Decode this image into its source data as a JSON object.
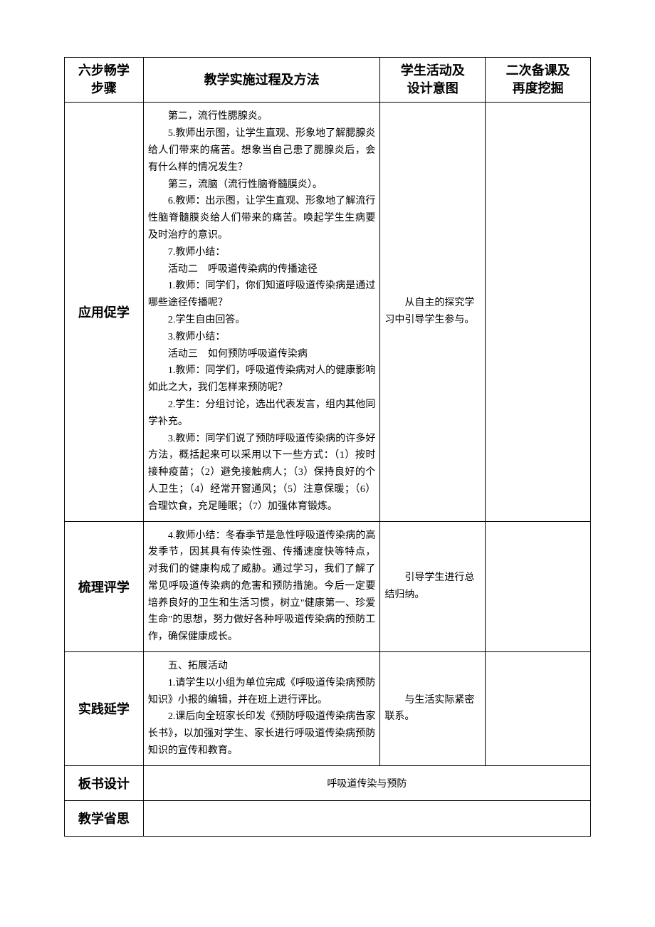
{
  "headers": {
    "step": "六步畅学\n步骤",
    "method": "教学实施过程及方法",
    "activity": "学生活动及\n设计意图",
    "notes": "二次备课及\n再度挖掘"
  },
  "rows": [
    {
      "step": "应用促学",
      "method_paragraphs": [
        "第二，流行性腮腺炎。",
        "5.教师出示图，让学生直观、形象地了解腮腺炎给人们带来的痛苦。想象当自己患了腮腺炎后，会有什么样的情况发生？",
        "第三，流脑（流行性脑脊髓膜炎）。",
        "6.教师：出示图，让学生直观、形象地了解流行性脑脊髓膜炎给人们带来的痛苦。唤起学生生病要及时治疗的意识。",
        "7.教师小结：",
        "活动二　呼吸道传染病的传播途径",
        "1.教师：同学们，你们知道呼吸道传染病是通过哪些途径传播呢？",
        "2.学生自由回答。",
        "3.教师小结：",
        "活动三　如何预防呼吸道传染病",
        "1.教师：同学们，呼吸道传染病对人的健康影响如此之大，我们怎样来预防呢？",
        "2.学生：分组讨论，选出代表发言，组内其他同学补充。",
        "3.教师：同学们说了预防呼吸道传染病的许多好方法，概括起来可以采用以下一些方式：（1）按时接种疫苗；（2）避免接触病人；（3）保持良好的个人卫生；（4）经常开窗通风；（5）注意保暖；（6）合理饮食，充足睡眠；（7）加强体育锻炼。"
      ],
      "activity_paragraphs": [
        "从自主的探究学习中引导学生参与。"
      ]
    },
    {
      "step": "梳理评学",
      "method_paragraphs": [
        "4.教师小结：冬春季节是急性呼吸道传染病的高发季节，因其具有传染性强、传播速度快等特点，对我们的健康构成了威胁。通过学习，我们了解了常见呼吸道传染病的危害和预防措施。今后一定要培养良好的卫生和生活习惯，树立\"健康第一、珍爱生命\"的思想，努力做好各种呼吸道传染病的预防工作，确保健康成长。"
      ],
      "activity_paragraphs": [
        "引导学生进行总结归纳。"
      ]
    },
    {
      "step": "实践延学",
      "method_paragraphs": [
        "五、拓展活动",
        "1.请学生以小组为单位完成《呼吸道传染病预防知识》小报的编辑，并在班上进行评比。",
        "2.课后向全班家长印发《预防呼吸道传染病告家长书》，以加强对学生、家长进行呼吸道传染病预防知识的宣传和教育。"
      ],
      "activity_paragraphs": [
        "与生活实际紧密联系。"
      ]
    }
  ],
  "board_design_label": "板书设计",
  "board_design_content": "呼吸道传染与预防",
  "reflection_label": "教学省思"
}
